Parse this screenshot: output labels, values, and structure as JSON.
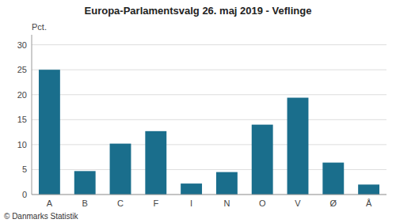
{
  "chart_data": {
    "type": "bar",
    "title": "Europa-Parlamentsvalg 26. maj 2019 - Veflinge",
    "y_label": "Pct.",
    "footer": "© Danmarks Statistik",
    "categories": [
      "A",
      "B",
      "C",
      "F",
      "I",
      "N",
      "O",
      "V",
      "Ø",
      "Å"
    ],
    "values": [
      25.0,
      4.7,
      10.2,
      12.7,
      2.2,
      4.5,
      14.0,
      19.4,
      6.4,
      2.0
    ],
    "color": "#1a6e8c",
    "ylim": [
      0,
      32
    ],
    "yticks": [
      0,
      5,
      10,
      15,
      20,
      25,
      30
    ],
    "grid": true
  }
}
